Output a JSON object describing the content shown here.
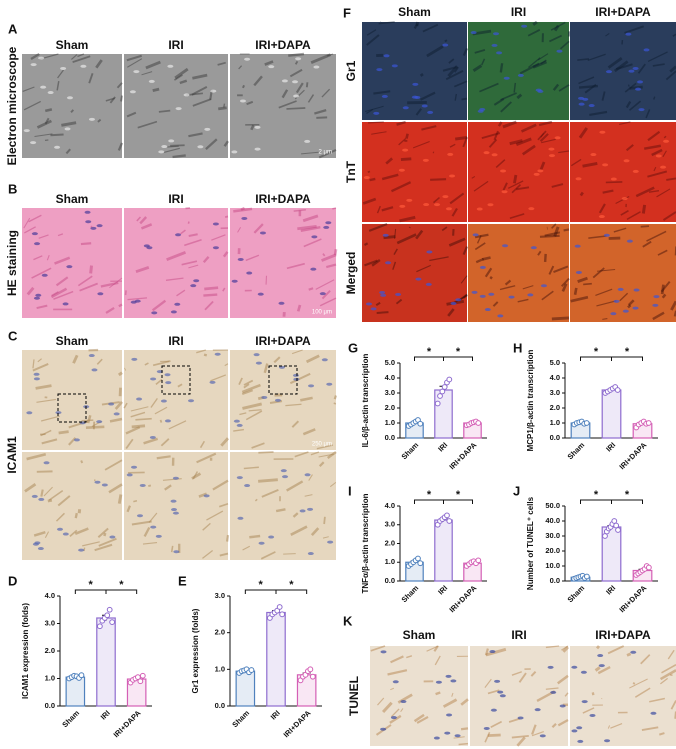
{
  "figure_panels": [
    {
      "label": "A",
      "row_labels": [
        "Electron microscope"
      ],
      "columns": [
        "Sham",
        "IRI",
        "IRI+DAPA"
      ],
      "scale_bar": "2 μm"
    },
    {
      "label": "B",
      "row_labels": [
        "HE staining"
      ],
      "columns": [
        "Sham",
        "IRI",
        "IRI+DAPA"
      ],
      "scale_bar": "100 μm"
    },
    {
      "label": "C",
      "row_labels": [
        "ICAM1"
      ],
      "columns": [
        "Sham",
        "IRI",
        "IRI+DAPA"
      ],
      "scale_bar": "250 μm"
    },
    {
      "label": "F",
      "row_labels": [
        "Gr1",
        "TnT",
        "Merged"
      ],
      "columns": [
        "Sham",
        "IRI",
        "IRI+DAPA"
      ]
    },
    {
      "label": "K",
      "row_labels": [
        "TUNEL"
      ],
      "columns": [
        "Sham",
        "IRI",
        "IRI+DAPA"
      ]
    }
  ],
  "chart_data": [
    {
      "type": "bar",
      "panel": "D",
      "ylabel": "ICAM1 expression (folds)",
      "categories": [
        "Sham",
        "IRI",
        "IRI+DAPA"
      ],
      "values": [
        1.05,
        3.2,
        0.98
      ],
      "errors": [
        0.03,
        0.1,
        0.04
      ],
      "points": [
        [
          1.0,
          1.05,
          1.1,
          1.08,
          1.02,
          1.12
        ],
        [
          2.9,
          3.1,
          3.2,
          3.3,
          3.5,
          3.05
        ],
        [
          0.85,
          0.95,
          1.0,
          1.05,
          0.9,
          1.1
        ]
      ],
      "colors": [
        "#4f81bd",
        "#8e6ccf",
        "#d45fb5"
      ],
      "ylim": [
        0,
        4
      ],
      "yticks": [
        {
          "value": 0,
          "label": "0.0"
        },
        {
          "value": 1,
          "label": "1.0"
        },
        {
          "value": 2,
          "label": "2.0"
        },
        {
          "value": 3,
          "label": "3.0"
        },
        {
          "value": 4,
          "label": "4.0"
        }
      ],
      "stars": [
        "*",
        "*"
      ]
    },
    {
      "type": "bar",
      "panel": "E",
      "ylabel": "Gr1 expression (folds)",
      "categories": [
        "Sham",
        "IRI",
        "IRI+DAPA"
      ],
      "values": [
        0.95,
        2.55,
        0.85
      ],
      "errors": [
        0.02,
        0.05,
        0.05
      ],
      "points": [
        [
          0.9,
          0.95,
          0.97,
          1.0,
          0.92,
          0.98
        ],
        [
          2.4,
          2.5,
          2.55,
          2.6,
          2.7,
          2.5
        ],
        [
          0.7,
          0.8,
          0.85,
          0.95,
          1.0,
          0.8
        ]
      ],
      "colors": [
        "#4f81bd",
        "#8e6ccf",
        "#d45fb5"
      ],
      "ylim": [
        0,
        3
      ],
      "yticks": [
        {
          "value": 0,
          "label": "0.0"
        },
        {
          "value": 1,
          "label": "1.0"
        },
        {
          "value": 2,
          "label": "2.0"
        },
        {
          "value": 3,
          "label": "3.0"
        }
      ],
      "stars": [
        "*",
        "*"
      ]
    },
    {
      "type": "bar",
      "panel": "G",
      "ylabel": "IL-6/β-actin transcription",
      "categories": [
        "Sham",
        "IRI",
        "IRI+DAPA"
      ],
      "values": [
        1.0,
        3.2,
        1.0
      ],
      "errors": [
        0.06,
        0.25,
        0.04
      ],
      "points": [
        [
          0.8,
          0.9,
          1.0,
          1.1,
          1.2,
          0.95
        ],
        [
          2.3,
          2.8,
          3.1,
          3.4,
          3.7,
          3.9
        ],
        [
          0.85,
          0.9,
          1.0,
          1.05,
          1.1,
          1.0
        ]
      ],
      "colors": [
        "#4f81bd",
        "#8e6ccf",
        "#d45fb5"
      ],
      "ylim": [
        0,
        5
      ],
      "yticks": [
        {
          "value": 0,
          "label": "0.0"
        },
        {
          "value": 1,
          "label": "1.0"
        },
        {
          "value": 2,
          "label": "2.0"
        },
        {
          "value": 3,
          "label": "3.0"
        },
        {
          "value": 4,
          "label": "4.0"
        },
        {
          "value": 5,
          "label": "5.0"
        }
      ],
      "stars": [
        "*",
        "*"
      ]
    },
    {
      "type": "bar",
      "panel": "H",
      "ylabel": "MCP1/β-actin transcription",
      "categories": [
        "Sham",
        "IRI",
        "IRI+DAPA"
      ],
      "values": [
        1.0,
        3.2,
        0.95
      ],
      "errors": [
        0.04,
        0.06,
        0.06
      ],
      "points": [
        [
          0.9,
          1.0,
          1.05,
          1.1,
          0.95,
          1.0
        ],
        [
          3.0,
          3.1,
          3.2,
          3.3,
          3.4,
          3.2
        ],
        [
          0.7,
          0.9,
          1.0,
          1.1,
          0.95,
          1.0
        ]
      ],
      "colors": [
        "#4f81bd",
        "#8e6ccf",
        "#d45fb5"
      ],
      "ylim": [
        0,
        5
      ],
      "yticks": [
        {
          "value": 0,
          "label": "0.0"
        },
        {
          "value": 1,
          "label": "1.0"
        },
        {
          "value": 2,
          "label": "2.0"
        },
        {
          "value": 3,
          "label": "3.0"
        },
        {
          "value": 4,
          "label": "4.0"
        },
        {
          "value": 5,
          "label": "5.0"
        }
      ],
      "stars": [
        "*",
        "*"
      ]
    },
    {
      "type": "bar",
      "panel": "I",
      "ylabel": "TNFα/β-actin transcription",
      "categories": [
        "Sham",
        "IRI",
        "IRI+DAPA"
      ],
      "values": [
        1.0,
        3.25,
        0.95
      ],
      "errors": [
        0.06,
        0.08,
        0.05
      ],
      "points": [
        [
          0.8,
          0.9,
          1.0,
          1.1,
          1.2,
          0.95
        ],
        [
          3.0,
          3.2,
          3.3,
          3.4,
          3.5,
          3.2
        ],
        [
          0.8,
          0.9,
          1.0,
          1.05,
          0.95,
          1.1
        ]
      ],
      "colors": [
        "#4f81bd",
        "#8e6ccf",
        "#d45fb5"
      ],
      "ylim": [
        0,
        4
      ],
      "yticks": [
        {
          "value": 0,
          "label": "0.0"
        },
        {
          "value": 1,
          "label": "1.0"
        },
        {
          "value": 2,
          "label": "2.0"
        },
        {
          "value": 3,
          "label": "3.0"
        },
        {
          "value": 4,
          "label": "4.0"
        }
      ],
      "stars": [
        "*",
        "*"
      ]
    },
    {
      "type": "bar",
      "panel": "J",
      "ylabel": "Number of TUNEL⁺ cells",
      "categories": [
        "Sham",
        "IRI",
        "IRI+DAPA"
      ],
      "values": [
        2.5,
        36,
        7
      ],
      "errors": [
        0.3,
        1.0,
        0.8
      ],
      "points": [
        [
          1.5,
          2,
          2.5,
          3,
          3.5,
          2,
          3
        ],
        [
          30,
          33,
          35,
          36,
          38,
          40,
          37,
          34
        ],
        [
          4,
          5,
          6,
          7,
          8,
          10,
          9
        ]
      ],
      "colors": [
        "#4f81bd",
        "#8e6ccf",
        "#d45fb5"
      ],
      "ylim": [
        0,
        50
      ],
      "yticks": [
        {
          "value": 0,
          "label": "0.0"
        },
        {
          "value": 10,
          "label": "10.0"
        },
        {
          "value": 20,
          "label": "20.0"
        },
        {
          "value": 30,
          "label": "30.0"
        },
        {
          "value": 40,
          "label": "40.0"
        },
        {
          "value": 50,
          "label": "50.0"
        }
      ],
      "stars": [
        "*",
        "*"
      ]
    }
  ]
}
